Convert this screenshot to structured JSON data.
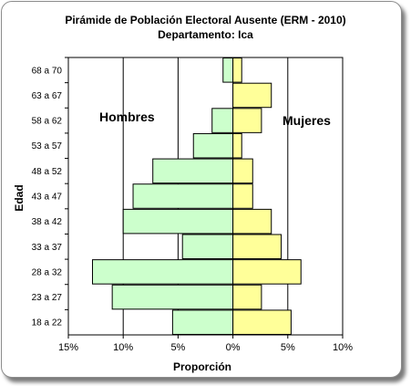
{
  "chart_data": {
    "type": "bar",
    "orientation": "horizontal-pyramid",
    "title": "Pirámide de Población  Electoral Ausente  (ERM - 2010)",
    "subtitle": "Departamento: Ica",
    "xlabel": "Proporción",
    "ylabel": "Edad",
    "xlim": [
      -15,
      10
    ],
    "xticks": [
      -15,
      -10,
      -5,
      0,
      5,
      10
    ],
    "xtick_labels": [
      "15%",
      "10%",
      "5%",
      "0%",
      "5%",
      "10%"
    ],
    "grid": true,
    "categories": [
      "68 a 70",
      "63 a 67",
      "58 a 62",
      "53 a 57",
      "48 a 52",
      "43 a 47",
      "38 a 42",
      "33 a 37",
      "28 a 32",
      "23 a 27",
      "18 a 22"
    ],
    "series": [
      {
        "name": "Hombres",
        "color": "#ccffcc",
        "values": [
          0.9,
          0.0,
          1.9,
          3.6,
          7.3,
          9.1,
          10.0,
          4.6,
          12.8,
          11.0,
          5.5
        ]
      },
      {
        "name": "Mujeres",
        "color": "#ffff99",
        "values": [
          0.8,
          3.5,
          2.6,
          0.8,
          1.8,
          1.8,
          3.5,
          4.4,
          6.2,
          2.6,
          5.3
        ]
      }
    ]
  }
}
